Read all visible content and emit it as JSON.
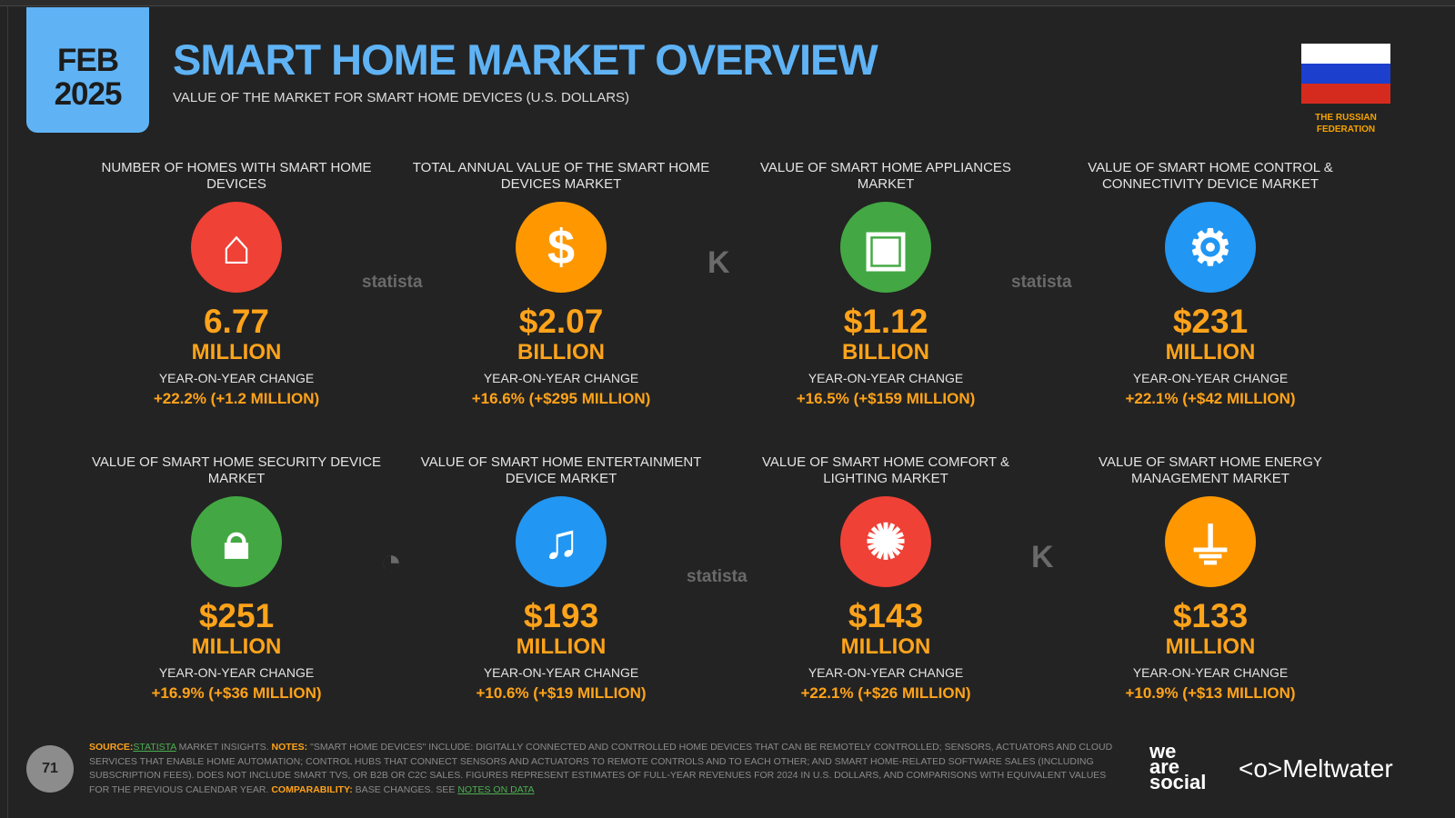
{
  "header": {
    "date_month": "FEB",
    "date_year": "2025",
    "title": "SMART HOME MARKET OVERVIEW",
    "subtitle": "VALUE OF THE MARKET FOR SMART HOME DEVICES (U.S. DOLLARS)",
    "country": "THE RUSSIAN FEDERATION",
    "flag_colors": [
      "#ffffff",
      "#1c3fce",
      "#d52b1e"
    ]
  },
  "yoy_label": "YEAR-ON-YEAR CHANGE",
  "cards": [
    {
      "label": "NUMBER OF HOMES WITH SMART HOME DEVICES",
      "icon": "wifi-home-icon",
      "color": "#ef4136",
      "value": "6.77",
      "unit": "MILLION",
      "change": "+22.2% (+1.2 MILLION)"
    },
    {
      "label": "TOTAL ANNUAL VALUE OF THE SMART HOME DEVICES MARKET",
      "icon": "dollar-icon",
      "color": "#ff9800",
      "value": "$2.07",
      "unit": "BILLION",
      "change": "+16.6% (+$295 MILLION)"
    },
    {
      "label": "VALUE OF SMART HOME APPLIANCES MARKET",
      "icon": "washing-machine-icon",
      "color": "#43a843",
      "value": "$1.12",
      "unit": "BILLION",
      "change": "+16.5% (+$159 MILLION)"
    },
    {
      "label": "VALUE OF SMART HOME CONTROL & CONNECTIVITY DEVICE MARKET",
      "icon": "gear-icon",
      "color": "#2196f3",
      "value": "$231",
      "unit": "MILLION",
      "change": "+22.1% (+$42 MILLION)"
    },
    {
      "label": "VALUE OF SMART HOME SECURITY DEVICE MARKET",
      "icon": "padlock-icon",
      "color": "#43a843",
      "value": "$251",
      "unit": "MILLION",
      "change": "+16.9% (+$36 MILLION)"
    },
    {
      "label": "VALUE OF SMART HOME ENTERTAINMENT DEVICE MARKET",
      "icon": "music-note-icon",
      "color": "#2196f3",
      "value": "$193",
      "unit": "MILLION",
      "change": "+10.6% (+$19 MILLION)"
    },
    {
      "label": "VALUE OF SMART HOME COMFORT & LIGHTING MARKET",
      "icon": "light-bulb-icon",
      "color": "#ef4136",
      "value": "$143",
      "unit": "MILLION",
      "change": "+22.1% (+$26 MILLION)"
    },
    {
      "label": "VALUE OF SMART HOME ENERGY MANAGEMENT MARKET",
      "icon": "plug-icon",
      "color": "#ff9800",
      "value": "$133",
      "unit": "MILLION",
      "change": "+10.9% (+$13 MILLION)"
    }
  ],
  "watermarks": {
    "statista": "statista",
    "kepios": "KEPIOS"
  },
  "footer": {
    "source_label": "SOURCE:",
    "source_link": "STATISTA",
    "source_rest": " MARKET INSIGHTS. ",
    "notes_label": "NOTES:",
    "notes_text": " \"SMART HOME DEVICES\" INCLUDE: DIGITALLY CONNECTED AND CONTROLLED HOME DEVICES THAT CAN BE REMOTELY CONTROLLED; SENSORS, ACTUATORS AND CLOUD SERVICES THAT ENABLE HOME AUTOMATION; CONTROL HUBS THAT CONNECT SENSORS AND ACTUATORS TO REMOTE CONTROLS AND TO EACH OTHER; AND SMART HOME-RELATED SOFTWARE SALES (INCLUDING SUBSCRIPTION FEES). DOES NOT INCLUDE SMART TVS, OR B2B OR C2C SALES. FIGURES REPRESENT ESTIMATES OF FULL-YEAR REVENUES FOR 2024 IN U.S. DOLLARS, AND COMPARISONS WITH EQUIVALENT VALUES FOR THE PREVIOUS CALENDAR YEAR. ",
    "comp_label": "COMPARABILITY:",
    "comp_text": " BASE CHANGES. SEE ",
    "comp_link": "NOTES ON DATA",
    "page": "71",
    "brand1": "we are social",
    "brand2": "Meltwater"
  }
}
